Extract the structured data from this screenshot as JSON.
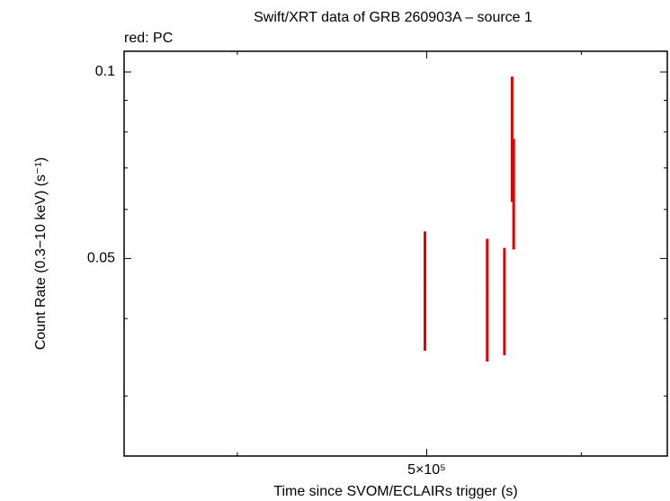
{
  "chart_data": {
    "type": "errorbar",
    "title": "Swift/XRT data of GRB 260903A – source 1",
    "subtitle": "red: PC",
    "x_label": "Time since SVOM/ECLAIRs trigger (s)",
    "y_label": "Count Rate (0.3−10 keV) (s⁻¹)",
    "x_log": true,
    "y_log": true,
    "xlim": [
      350000,
      664000
    ],
    "ylim": [
      0.024,
      0.108
    ],
    "xticks": [
      {
        "value": 500000,
        "label": "5×10⁵"
      }
    ],
    "xminor": [
      400000,
      600000
    ],
    "yticks": [
      0.1,
      0.05
    ],
    "yminor": [
      0.03,
      0.04,
      0.06,
      0.07,
      0.08,
      0.09
    ],
    "series": [
      {
        "name": "PC",
        "color": "#e00000",
        "x": [
          499000,
          537000,
          548000,
          553000,
          554000
        ],
        "values": [
          0.0455,
          0.044,
          0.0437,
          0.078,
          0.0642
        ],
        "y_low": [
          0.0355,
          0.0341,
          0.0349,
          0.0617,
          0.0517
        ],
        "y_high": [
          0.0553,
          0.0538,
          0.052,
          0.0983,
          0.078
        ]
      }
    ]
  }
}
